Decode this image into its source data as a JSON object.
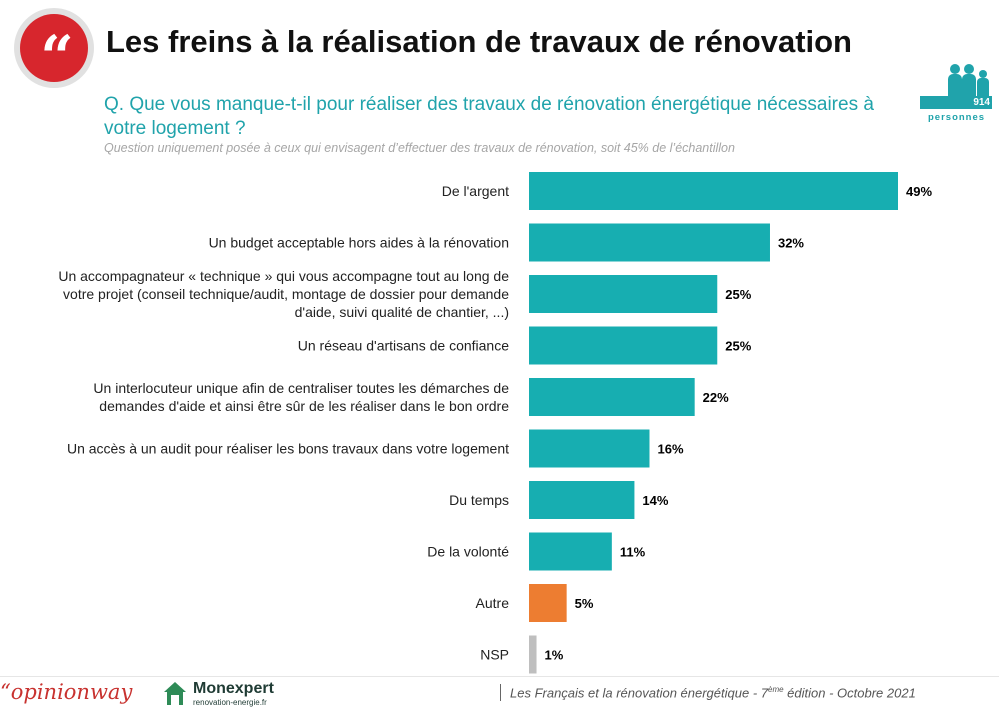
{
  "header": {
    "quote_glyph": "“",
    "title": "Les freins à la réalisation de travaux de rénovation",
    "question": "Q. Que vous manque-t-il pour réaliser des travaux de rénovation énergétique nécessaires à votre logement ?",
    "note": "Question uniquement posée à ceux qui envisagent d’effectuer des travaux de rénovation, soit 45% de l’échantillon"
  },
  "sample": {
    "count": "914",
    "label": "personnes"
  },
  "colors": {
    "main_bar": "#17aeb1",
    "other_bar": "#ed7d31",
    "nsp_bar": "#bfbfbf",
    "accent": "#20a3ab",
    "brand_red": "#d7262d"
  },
  "chart_data": {
    "type": "bar",
    "orientation": "horizontal",
    "categories": [
      "De l'argent",
      "Un budget acceptable hors aides à la rénovation",
      "Un accompagnateur « technique » qui vous accompagne tout au long de votre projet (conseil technique/audit, montage de dossier pour demande d'aide, suivi qualité de chantier, ...)",
      "Un réseau d'artisans de confiance",
      "Un interlocuteur unique afin de centraliser toutes les démarches de demandes d'aide et ainsi être sûr de les réaliser dans le bon ordre",
      "Un accès à un audit pour réaliser les bons travaux dans votre logement",
      "Du temps",
      "De la volonté",
      "Autre",
      "NSP"
    ],
    "values": [
      49,
      32,
      25,
      25,
      22,
      16,
      14,
      11,
      5,
      1
    ],
    "value_labels": [
      "49%",
      "32%",
      "25%",
      "25%",
      "22%",
      "16%",
      "14%",
      "11%",
      "5%",
      "1%"
    ],
    "bar_colors": [
      "#17aeb1",
      "#17aeb1",
      "#17aeb1",
      "#17aeb1",
      "#17aeb1",
      "#17aeb1",
      "#17aeb1",
      "#17aeb1",
      "#ed7d31",
      "#bfbfbf"
    ],
    "label_lines": [
      [
        "De l'argent"
      ],
      [
        "Un budget acceptable hors aides à la rénovation"
      ],
      [
        "Un accompagnateur « technique » qui vous accompagne tout au long de",
        "votre projet (conseil technique/audit, montage de dossier pour demande",
        "d'aide, suivi qualité de chantier, ...)"
      ],
      [
        "Un réseau d'artisans de confiance"
      ],
      [
        "Un interlocuteur unique afin de centraliser toutes les démarches de",
        "demandes d'aide et ainsi être sûr de les réaliser dans le bon ordre"
      ],
      [
        "Un accès à un audit pour réaliser les bons travaux dans votre logement"
      ],
      [
        "Du temps"
      ],
      [
        "De la volonté"
      ],
      [
        "Autre"
      ],
      [
        "NSP"
      ]
    ],
    "xlim": [
      0,
      50
    ],
    "grid": false,
    "legend": "none"
  },
  "footer": {
    "logo_left": "“opinionway",
    "logo_right": "Monexpert",
    "logo_right_sub": "renovation-energie.fr",
    "source_pre": "Les Français et la rénovation énergétique - 7",
    "source_sup": "ème",
    "source_post": " édition - Octobre 2021"
  }
}
